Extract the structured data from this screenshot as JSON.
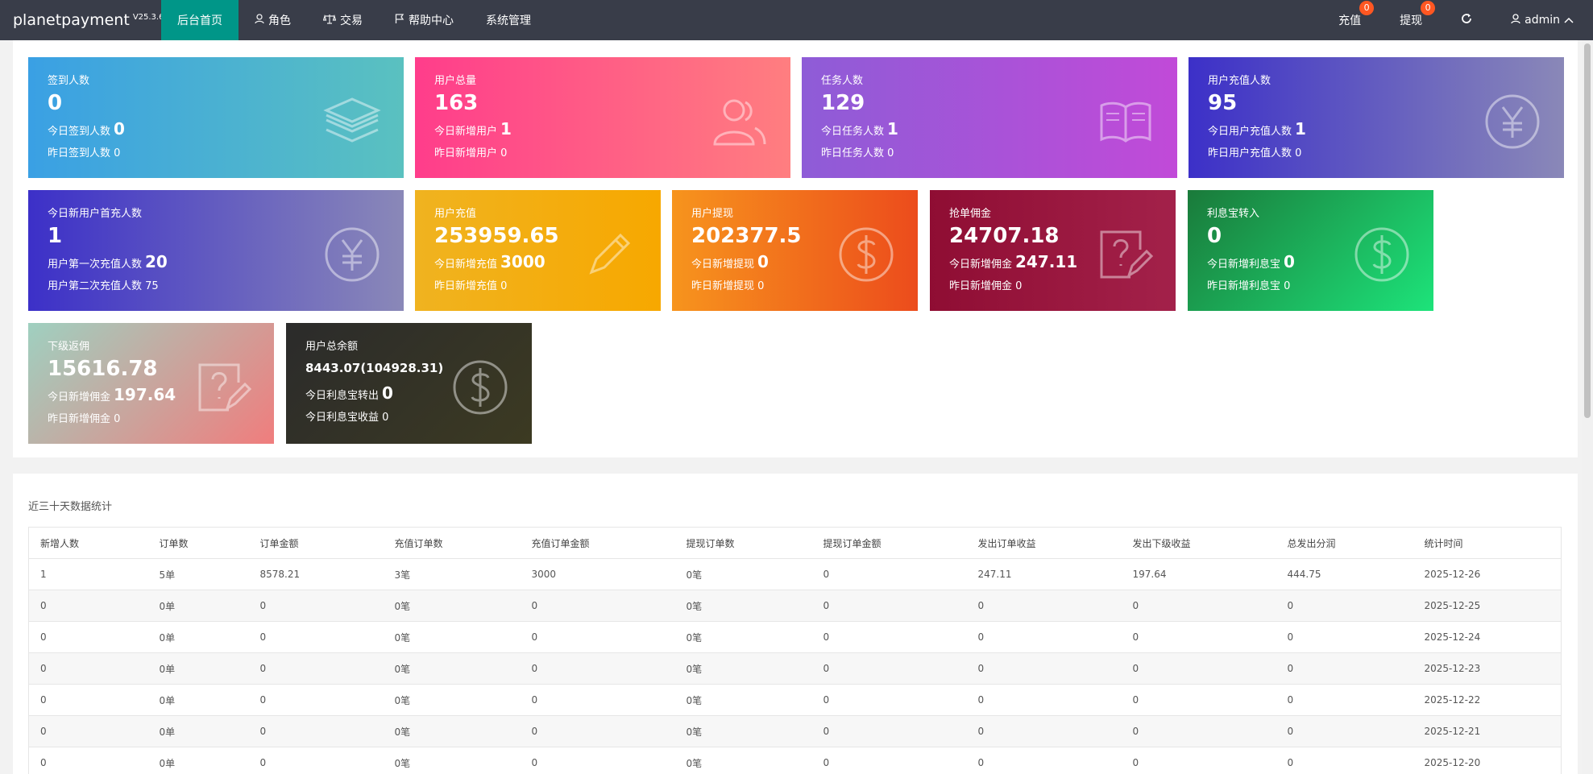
{
  "header": {
    "brand": "planetpayment",
    "version": "V25.3.6",
    "nav": [
      {
        "label": "后台首页",
        "icon": "",
        "active": true
      },
      {
        "label": "角色",
        "icon": "user-icon"
      },
      {
        "label": "交易",
        "icon": "scale-icon"
      },
      {
        "label": "帮助中心",
        "icon": "flag-icon"
      },
      {
        "label": "系统管理",
        "icon": ""
      }
    ],
    "recharge_label": "充值",
    "recharge_badge": "0",
    "withdraw_label": "提现",
    "withdraw_badge": "0",
    "user_label": "admin"
  },
  "cards": [
    {
      "title": "签到人数",
      "value": "0",
      "l1": "今日签到人数",
      "v1": "0",
      "l2": "昨日签到人数",
      "v2": "0",
      "icon": "layers-icon"
    },
    {
      "title": "用户总量",
      "value": "163",
      "l1": "今日新增用户",
      "v1": "1",
      "l2": "昨日新增用户",
      "v2": "0",
      "icon": "users-icon"
    },
    {
      "title": "任务人数",
      "value": "129",
      "l1": "今日任务人数",
      "v1": "1",
      "l2": "昨日任务人数",
      "v2": "0",
      "icon": "book-icon"
    },
    {
      "title": "用户充值人数",
      "value": "95",
      "l1": "今日用户充值人数",
      "v1": "1",
      "l2": "昨日用户充值人数",
      "v2": "0",
      "icon": "yen-icon"
    },
    {
      "title": "今日新用户首充人数",
      "value": "1",
      "l1": "用户第一次充值人数",
      "v1": "20",
      "l2": "用户第二次充值人数",
      "v2": "75",
      "icon": "yen-icon"
    },
    {
      "title": "用户充值",
      "value": "253959.65",
      "l1": "今日新增充值",
      "v1": "3000",
      "l2": "昨日新增充值",
      "v2": "0",
      "icon": "pen-icon"
    },
    {
      "title": "用户提现",
      "value": "202377.5",
      "l1": "今日新增提现",
      "v1": "0",
      "l2": "昨日新增提现",
      "v2": "0",
      "icon": "dollar-icon"
    },
    {
      "title": "抢单佣金",
      "value": "24707.18",
      "l1": "今日新增佣金",
      "v1": "247.11",
      "l2": "昨日新增佣金",
      "v2": "0",
      "icon": "note-icon"
    },
    {
      "title": "利息宝转入",
      "value": "0",
      "l1": "今日新增利息宝",
      "v1": "0",
      "l2": "昨日新增利息宝",
      "v2": "0",
      "icon": "dollar-icon"
    },
    {
      "title": "下级返佣",
      "value": "15616.78",
      "l1": "今日新增佣金",
      "v1": "197.64",
      "l2": "昨日新增佣金",
      "v2": "0",
      "icon": "note-icon"
    },
    {
      "title": "用户总余额",
      "value": "8443.07(104928.31)",
      "l1": "今日利息宝转出",
      "v1": "0",
      "l2": "今日利息宝收益",
      "v2": "0",
      "icon": "dollar-icon"
    }
  ],
  "stats_table": {
    "title": "近三十天数据统计",
    "headers": [
      "新增人数",
      "订单数",
      "订单金额",
      "充值订单数",
      "充值订单金额",
      "提现订单数",
      "提现订单金额",
      "发出订单收益",
      "发出下级收益",
      "总发出分润",
      "统计时间"
    ],
    "rows": [
      [
        "1",
        "5单",
        "8578.21",
        "3笔",
        "3000",
        "0笔",
        "0",
        "247.11",
        "197.64",
        "444.75",
        "2025-12-26"
      ],
      [
        "0",
        "0单",
        "0",
        "0笔",
        "0",
        "0笔",
        "0",
        "0",
        "0",
        "0",
        "2025-12-25"
      ],
      [
        "0",
        "0单",
        "0",
        "0笔",
        "0",
        "0笔",
        "0",
        "0",
        "0",
        "0",
        "2025-12-24"
      ],
      [
        "0",
        "0单",
        "0",
        "0笔",
        "0",
        "0笔",
        "0",
        "0",
        "0",
        "0",
        "2025-12-23"
      ],
      [
        "0",
        "0单",
        "0",
        "0笔",
        "0",
        "0笔",
        "0",
        "0",
        "0",
        "0",
        "2025-12-22"
      ],
      [
        "0",
        "0单",
        "0",
        "0笔",
        "0",
        "0笔",
        "0",
        "0",
        "0",
        "0",
        "2025-12-21"
      ],
      [
        "0",
        "0单",
        "0",
        "0笔",
        "0",
        "0笔",
        "0",
        "0",
        "0",
        "0",
        "2025-12-20"
      ]
    ]
  }
}
